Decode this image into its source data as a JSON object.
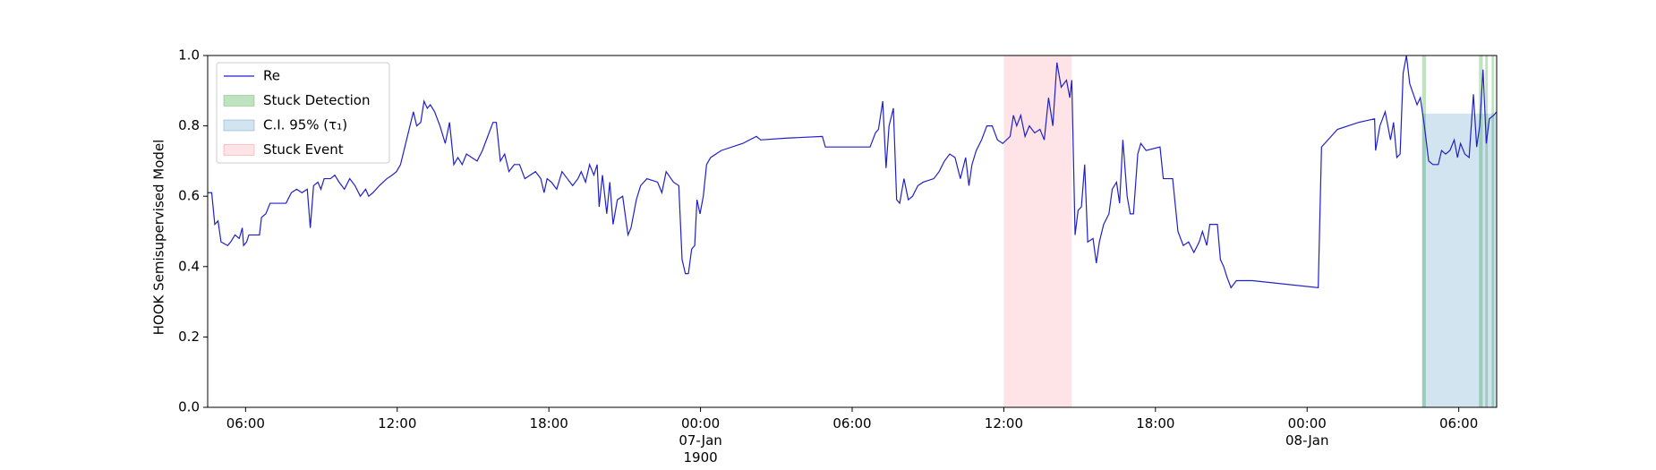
{
  "chart_data": {
    "type": "line",
    "y_label": "HOOK Semisupervised Model",
    "x": [
      4.49,
      4.66,
      4.78,
      4.91,
      5.03,
      5.29,
      5.41,
      5.58,
      5.75,
      5.87,
      5.92,
      6.04,
      6.13,
      6.55,
      6.63,
      6.8,
      6.97,
      7.26,
      7.6,
      7.81,
      8.02,
      8.23,
      8.44,
      8.56,
      8.69,
      8.86,
      8.98,
      9.11,
      9.36,
      9.53,
      9.7,
      9.91,
      10.12,
      10.33,
      10.54,
      10.75,
      10.87,
      11.04,
      11.29,
      11.59,
      11.8,
      11.97,
      12.13,
      12.3,
      12.47,
      12.64,
      12.77,
      12.93,
      13.06,
      13.19,
      13.31,
      13.48,
      13.69,
      13.9,
      14.07,
      14.24,
      14.4,
      14.57,
      14.74,
      14.95,
      15.16,
      15.37,
      15.58,
      15.79,
      15.92,
      16.08,
      16.25,
      16.42,
      16.63,
      16.84,
      17.05,
      17.26,
      17.47,
      17.68,
      17.81,
      17.93,
      18.1,
      18.31,
      18.52,
      18.73,
      18.94,
      19.15,
      19.28,
      19.45,
      19.61,
      19.78,
      19.91,
      19.99,
      20.12,
      20.29,
      20.41,
      20.54,
      20.71,
      20.92,
      21.13,
      21.25,
      21.46,
      21.63,
      21.88,
      22.3,
      22.47,
      22.64,
      22.93,
      23.14,
      23.27,
      23.4,
      23.52,
      23.65,
      23.77,
      23.86,
      23.98,
      24.11,
      24.24,
      24.4,
      24.82,
      25.67,
      26.21,
      26.38,
      27.35,
      28.82,
      28.94,
      29.87,
      30.71,
      30.92,
      31.04,
      31.21,
      31.34,
      31.46,
      31.63,
      31.76,
      31.88,
      32.05,
      32.22,
      32.39,
      32.6,
      32.81,
      33.23,
      33.44,
      33.65,
      33.86,
      34.07,
      34.28,
      34.49,
      34.62,
      34.74,
      34.91,
      35.12,
      35.33,
      35.54,
      35.75,
      35.96,
      36.25,
      36.38,
      36.51,
      36.67,
      36.84,
      37.01,
      37.22,
      37.43,
      37.6,
      37.77,
      37.94,
      38.1,
      38.27,
      38.48,
      38.61,
      38.69,
      38.82,
      38.94,
      39.07,
      39.2,
      39.32,
      39.53,
      39.66,
      39.78,
      39.95,
      40.16,
      40.29,
      40.46,
      40.58,
      40.71,
      40.88,
      41.0,
      41.13,
      41.3,
      41.42,
      41.63,
      42.18,
      42.31,
      42.68,
      42.89,
      43.1,
      43.31,
      43.52,
      43.73,
      43.86,
      44.03,
      44.15,
      44.45,
      44.57,
      44.7,
      44.83,
      44.99,
      45.2,
      45.84,
      48.44,
      48.57,
      49.2,
      50.04,
      50.67,
      50.71,
      50.88,
      51.09,
      51.3,
      51.42,
      51.55,
      51.68,
      51.8,
      51.93,
      52.06,
      52.35,
      52.48,
      52.64,
      52.81,
      52.98,
      53.19,
      53.32,
      53.48,
      53.65,
      53.82,
      53.95,
      54.07,
      54.24,
      54.41,
      54.58,
      54.71,
      54.83,
      54.96,
      55.09,
      55.21,
      55.38,
      55.5
    ],
    "series": [
      {
        "name": "Re",
        "color": "#2020c8",
        "values": [
          0.61,
          0.61,
          0.52,
          0.53,
          0.47,
          0.46,
          0.47,
          0.49,
          0.48,
          0.51,
          0.46,
          0.47,
          0.49,
          0.49,
          0.54,
          0.55,
          0.58,
          0.58,
          0.58,
          0.61,
          0.62,
          0.61,
          0.62,
          0.51,
          0.63,
          0.64,
          0.62,
          0.65,
          0.65,
          0.66,
          0.64,
          0.62,
          0.65,
          0.63,
          0.6,
          0.62,
          0.6,
          0.61,
          0.63,
          0.65,
          0.66,
          0.67,
          0.69,
          0.74,
          0.79,
          0.84,
          0.8,
          0.81,
          0.87,
          0.85,
          0.86,
          0.84,
          0.8,
          0.75,
          0.81,
          0.69,
          0.71,
          0.69,
          0.72,
          0.71,
          0.7,
          0.73,
          0.77,
          0.81,
          0.81,
          0.7,
          0.72,
          0.67,
          0.69,
          0.69,
          0.65,
          0.66,
          0.67,
          0.65,
          0.61,
          0.65,
          0.64,
          0.62,
          0.67,
          0.65,
          0.63,
          0.65,
          0.67,
          0.64,
          0.69,
          0.66,
          0.69,
          0.57,
          0.66,
          0.55,
          0.64,
          0.52,
          0.59,
          0.6,
          0.49,
          0.51,
          0.59,
          0.63,
          0.65,
          0.64,
          0.61,
          0.67,
          0.64,
          0.63,
          0.42,
          0.38,
          0.38,
          0.45,
          0.46,
          0.59,
          0.55,
          0.6,
          0.69,
          0.71,
          0.73,
          0.75,
          0.77,
          0.76,
          0.765,
          0.77,
          0.74,
          0.74,
          0.74,
          0.78,
          0.79,
          0.87,
          0.68,
          0.8,
          0.85,
          0.59,
          0.58,
          0.65,
          0.59,
          0.6,
          0.63,
          0.64,
          0.65,
          0.67,
          0.7,
          0.72,
          0.71,
          0.65,
          0.71,
          0.63,
          0.69,
          0.73,
          0.76,
          0.8,
          0.8,
          0.76,
          0.75,
          0.77,
          0.83,
          0.8,
          0.83,
          0.77,
          0.8,
          0.78,
          0.79,
          0.76,
          0.88,
          0.8,
          0.98,
          0.91,
          0.93,
          0.88,
          0.93,
          0.49,
          0.56,
          0.57,
          0.69,
          0.47,
          0.48,
          0.41,
          0.47,
          0.52,
          0.55,
          0.62,
          0.64,
          0.58,
          0.76,
          0.6,
          0.55,
          0.55,
          0.72,
          0.75,
          0.73,
          0.74,
          0.65,
          0.65,
          0.5,
          0.46,
          0.47,
          0.44,
          0.47,
          0.5,
          0.46,
          0.52,
          0.52,
          0.42,
          0.4,
          0.37,
          0.34,
          0.36,
          0.36,
          0.34,
          0.74,
          0.79,
          0.81,
          0.82,
          0.73,
          0.8,
          0.84,
          0.76,
          0.81,
          0.71,
          0.72,
          0.95,
          1.0,
          0.92,
          0.86,
          0.88,
          0.8,
          0.7,
          0.69,
          0.69,
          0.73,
          0.72,
          0.73,
          0.76,
          0.71,
          0.75,
          0.72,
          0.71,
          0.89,
          0.74,
          0.8,
          0.96,
          0.75,
          0.82,
          0.83,
          0.84
        ]
      }
    ],
    "bands": [
      {
        "name": "Stuck Detection",
        "color": "#2ca02c",
        "ranges": [
          [
            52.55,
            52.7
          ],
          [
            54.8,
            54.95
          ],
          [
            55.05,
            55.15
          ],
          [
            55.3,
            55.4
          ]
        ]
      },
      {
        "name": "C.I. 95% (τ₁)",
        "color": "#1f77b4",
        "ranges": [
          [
            52.55,
            55.5
          ]
        ],
        "top": 0.835
      },
      {
        "name": "Stuck Event",
        "color": "#ff4d5e",
        "ranges": [
          [
            36.0,
            38.69
          ]
        ]
      }
    ],
    "xlim": [
      4.5,
      55.5
    ],
    "xticks": [
      {
        "value": 6,
        "label": "06:00"
      },
      {
        "value": 12,
        "label": "12:00"
      },
      {
        "value": 18,
        "label": "18:00"
      },
      {
        "value": 24,
        "label": "00:00\n07-Jan\n1900"
      },
      {
        "value": 30,
        "label": "06:00"
      },
      {
        "value": 36,
        "label": "12:00"
      },
      {
        "value": 42,
        "label": "18:00"
      },
      {
        "value": 48,
        "label": "00:00\n08-Jan"
      },
      {
        "value": 54,
        "label": "06:00"
      }
    ],
    "ylim": [
      0,
      1
    ],
    "yticks": [
      {
        "value": 0,
        "label": "0.0"
      },
      0.2,
      0.4,
      0.6,
      0.8,
      {
        "value": 1,
        "label": "1.0"
      }
    ],
    "legend": "upper left"
  }
}
